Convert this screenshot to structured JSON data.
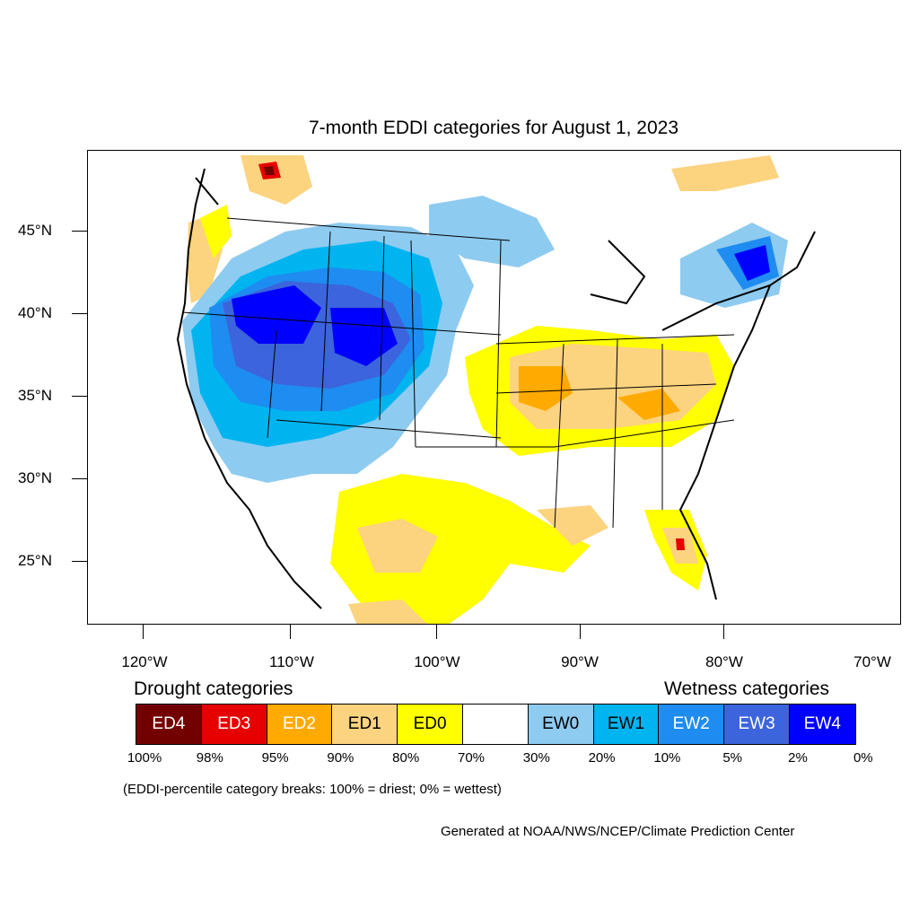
{
  "title": "7-month EDDI categories for August 1, 2023",
  "lat_labels": [
    "45°N",
    "40°N",
    "35°N",
    "30°N",
    "25°N"
  ],
  "lon_labels": [
    "120°W",
    "110°W",
    "100°W",
    "90°W",
    "80°W",
    "70°W"
  ],
  "legend": {
    "drought_heading": "Drought categories",
    "wetness_heading": "Wetness categories",
    "categories": [
      {
        "label": "ED4",
        "color": "#730000",
        "text_color": "#ffffff"
      },
      {
        "label": "ED3",
        "color": "#e60000",
        "text_color": "#ffffff"
      },
      {
        "label": "ED2",
        "color": "#ffaa00",
        "text_color": "#ffffff"
      },
      {
        "label": "ED1",
        "color": "#fcd37f",
        "text_color": "#000000"
      },
      {
        "label": "ED0",
        "color": "#ffff00",
        "text_color": "#000000"
      },
      {
        "label": "",
        "color": "#ffffff",
        "text_color": "#000000"
      },
      {
        "label": "EW0",
        "color": "#8ecbf0",
        "text_color": "#000000"
      },
      {
        "label": "EW1",
        "color": "#00b4f0",
        "text_color": "#000000"
      },
      {
        "label": "EW2",
        "color": "#1e8cf0",
        "text_color": "#ffffff"
      },
      {
        "label": "EW3",
        "color": "#3c64dc",
        "text_color": "#ffffff"
      },
      {
        "label": "EW4",
        "color": "#0000ff",
        "text_color": "#ffffff"
      }
    ],
    "percentiles": [
      "100%",
      "98%",
      "95%",
      "90%",
      "80%",
      "70%",
      "30%",
      "20%",
      "10%",
      "5%",
      "2%",
      "0%"
    ]
  },
  "note": "(EDDI-percentile category breaks: 100% = driest; 0% = wettest)",
  "credit": "Generated at NOAA/NWS/NCEP/Climate Prediction Center"
}
